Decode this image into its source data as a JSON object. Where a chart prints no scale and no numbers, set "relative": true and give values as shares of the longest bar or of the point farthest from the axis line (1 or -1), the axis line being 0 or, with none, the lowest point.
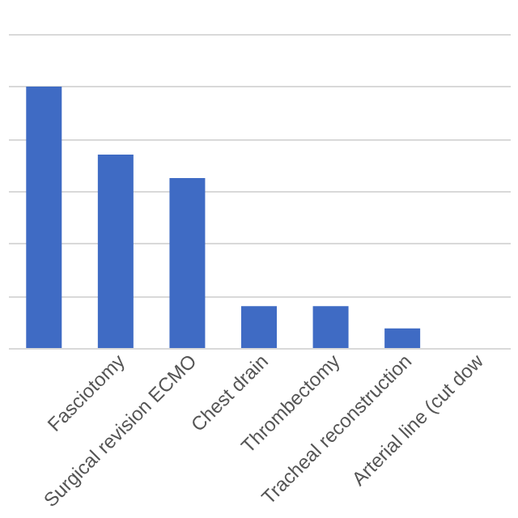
{
  "chart_data": {
    "type": "bar",
    "relative": true,
    "categories": [
      null,
      "Fasciotomy",
      "Surgical revision ECMO",
      "Chest drain",
      "Thrombectomy",
      "Tracheal reconstruction",
      "Arterial line (cut dow"
    ],
    "values": [
      1,
      0.74,
      0.65,
      0.16,
      0.16,
      0.075,
      null
    ],
    "color": "#3f6bc4",
    "grid": "y"
  }
}
